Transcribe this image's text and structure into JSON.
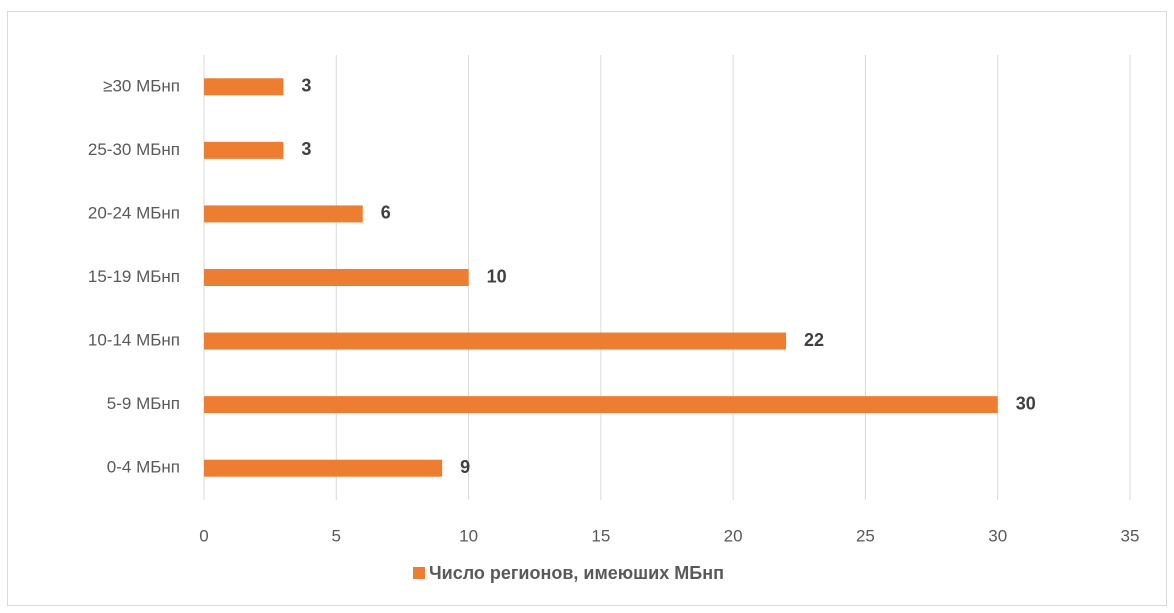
{
  "chart_data": {
    "type": "bar",
    "orientation": "horizontal",
    "categories": [
      "0-4 МБнп",
      "5-9 МБнп",
      "10-14 МБнп",
      "15-19 МБнп",
      "20-24 МБнп",
      "25-30 МБнп",
      "≥30 МБнп"
    ],
    "series": [
      {
        "name": "Число регионов, имеюших МБнп",
        "color": "#ed7d31",
        "values": [
          9,
          30,
          22,
          10,
          6,
          3,
          3
        ]
      }
    ],
    "xlim": [
      0,
      35
    ],
    "xticks": [
      0,
      5,
      10,
      15,
      20,
      25,
      30,
      35
    ],
    "grid": true,
    "legend": "bottom"
  }
}
